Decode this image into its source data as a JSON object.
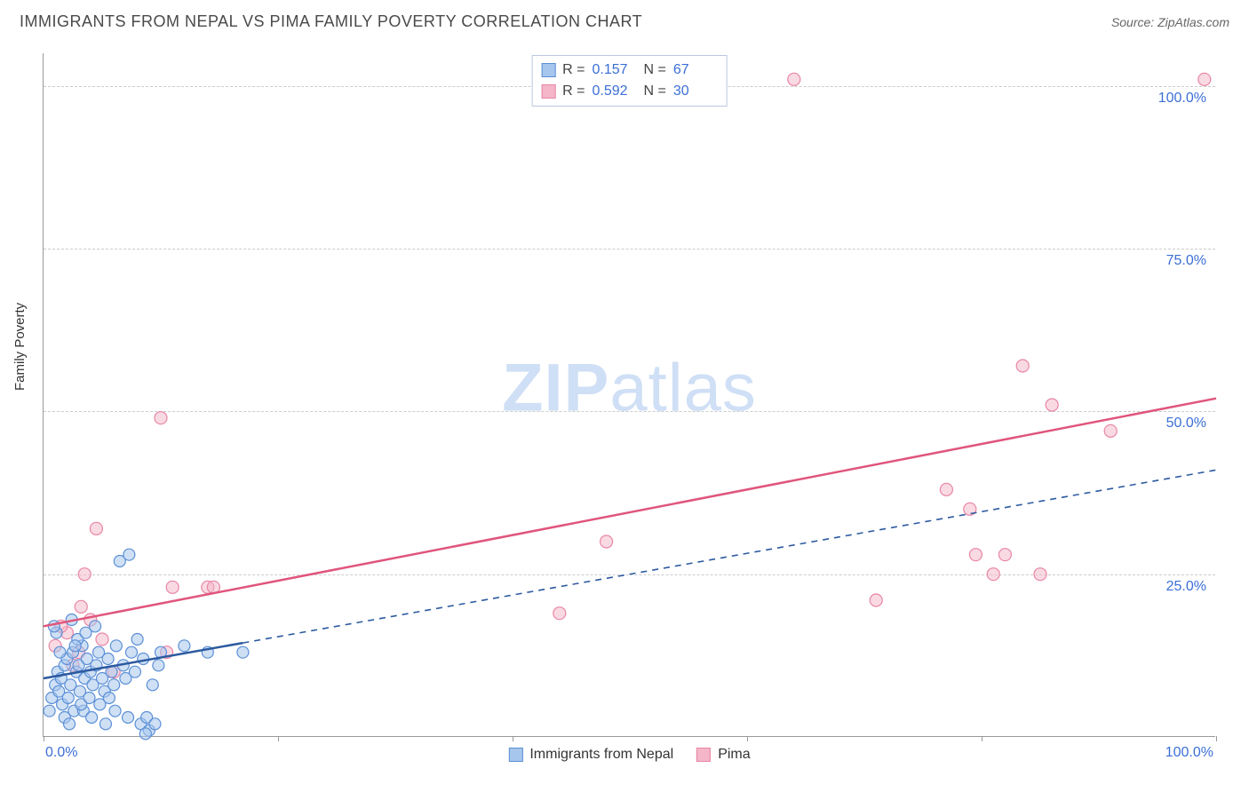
{
  "header": {
    "title": "IMMIGRANTS FROM NEPAL VS PIMA FAMILY POVERTY CORRELATION CHART",
    "source": "Source: ZipAtlas.com"
  },
  "ylabel": "Family Poverty",
  "watermark_a": "ZIP",
  "watermark_b": "atlas",
  "stats": {
    "series1": {
      "R_label": "R =",
      "R": "0.157",
      "N_label": "N =",
      "N": "67"
    },
    "series2": {
      "R_label": "R =",
      "R": "0.592",
      "N_label": "N =",
      "N": "30"
    }
  },
  "legend": {
    "series1": "Immigrants from Nepal",
    "series2": "Pima"
  },
  "chart": {
    "type": "scatter",
    "xlim": [
      0,
      100
    ],
    "ylim": [
      0,
      105
    ],
    "xticks": [
      0,
      20,
      40,
      60,
      80,
      100
    ],
    "xtick_labels": {
      "min": "0.0%",
      "max": "100.0%"
    },
    "ygrids": [
      25,
      50,
      75,
      100
    ],
    "ytick_labels": {
      "25": "25.0%",
      "50": "50.0%",
      "75": "75.0%",
      "100": "100.0%"
    },
    "background_color": "#ffffff",
    "grid_color": "#cccccc",
    "axis_color": "#999999",
    "tick_label_color": "#3b6fd6",
    "series1": {
      "name": "Immigrants from Nepal",
      "marker_fill": "#a7c6ed",
      "marker_stroke": "#5b8fd6",
      "marker_radius": 6.5,
      "fill_opacity": 0.55,
      "trend_color": "#2c5aa0",
      "trend_solid_xmax": 17,
      "trend_y_at_x0": 9,
      "trend_y_at_x100": 41,
      "points": [
        [
          0.5,
          4
        ],
        [
          0.7,
          6
        ],
        [
          1,
          8
        ],
        [
          1.2,
          10
        ],
        [
          1.3,
          7
        ],
        [
          1.5,
          9
        ],
        [
          1.6,
          5
        ],
        [
          1.8,
          11
        ],
        [
          2,
          12
        ],
        [
          2.1,
          6
        ],
        [
          2.3,
          8
        ],
        [
          2.5,
          13
        ],
        [
          2.6,
          4
        ],
        [
          2.8,
          10
        ],
        [
          3,
          11
        ],
        [
          3.1,
          7
        ],
        [
          3.3,
          14
        ],
        [
          3.5,
          9
        ],
        [
          3.7,
          12
        ],
        [
          3.9,
          6
        ],
        [
          4,
          10
        ],
        [
          4.2,
          8
        ],
        [
          4.5,
          11
        ],
        [
          4.7,
          13
        ],
        [
          5,
          9
        ],
        [
          5.2,
          7
        ],
        [
          5.5,
          12
        ],
        [
          5.8,
          10
        ],
        [
          6,
          8
        ],
        [
          6.2,
          14
        ],
        [
          6.5,
          27
        ],
        [
          6.8,
          11
        ],
        [
          7,
          9
        ],
        [
          7.3,
          28
        ],
        [
          7.5,
          13
        ],
        [
          7.8,
          10
        ],
        [
          8,
          15
        ],
        [
          8.3,
          2
        ],
        [
          8.5,
          12
        ],
        [
          8.8,
          3
        ],
        [
          9,
          1
        ],
        [
          9.3,
          8
        ],
        [
          9.5,
          2
        ],
        [
          9.8,
          11
        ],
        [
          10,
          13
        ],
        [
          1.8,
          3
        ],
        [
          2.2,
          2
        ],
        [
          3.4,
          4
        ],
        [
          4.1,
          3
        ],
        [
          5.3,
          2
        ],
        [
          6.1,
          4
        ],
        [
          7.2,
          3
        ],
        [
          2.9,
          15
        ],
        [
          3.6,
          16
        ],
        [
          4.4,
          17
        ],
        [
          1.4,
          13
        ],
        [
          2.7,
          14
        ],
        [
          5.6,
          6
        ],
        [
          3.2,
          5
        ],
        [
          4.8,
          5
        ],
        [
          12,
          14
        ],
        [
          14,
          13
        ],
        [
          17,
          13
        ],
        [
          1.1,
          16
        ],
        [
          0.9,
          17
        ],
        [
          2.4,
          18
        ],
        [
          8.7,
          0.5
        ]
      ]
    },
    "series2": {
      "name": "Pima",
      "marker_fill": "#f4b6c8",
      "marker_stroke": "#e985a5",
      "marker_radius": 7,
      "fill_opacity": 0.5,
      "trend_color": "#e0557c",
      "trend_y_at_x0": 17,
      "trend_y_at_x100": 52,
      "points": [
        [
          1,
          14
        ],
        [
          2,
          16
        ],
        [
          3,
          13
        ],
        [
          4,
          18
        ],
        [
          3.5,
          25
        ],
        [
          4.5,
          32
        ],
        [
          5,
          15
        ],
        [
          10,
          49
        ],
        [
          10.5,
          13
        ],
        [
          11,
          23
        ],
        [
          14,
          23
        ],
        [
          14.5,
          23
        ],
        [
          48,
          30
        ],
        [
          64,
          101
        ],
        [
          71,
          21
        ],
        [
          77,
          38
        ],
        [
          79,
          35
        ],
        [
          79.5,
          28
        ],
        [
          81,
          25
        ],
        [
          82,
          28
        ],
        [
          83.5,
          57
        ],
        [
          85,
          25
        ],
        [
          86,
          51
        ],
        [
          91,
          47
        ],
        [
          99,
          101
        ],
        [
          44,
          19
        ],
        [
          2.5,
          11
        ],
        [
          6,
          10
        ],
        [
          1.5,
          17
        ],
        [
          3.2,
          20
        ]
      ]
    }
  }
}
